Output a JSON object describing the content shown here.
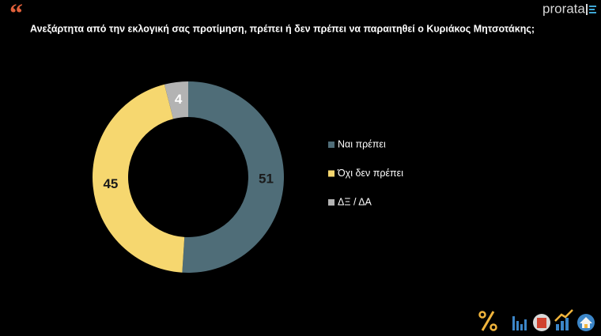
{
  "brand": "prorata",
  "chart_data": {
    "type": "donut",
    "title": "Ανεξάρτητα από την εκλογική σας προτίμηση, πρέπει ή δεν πρέπει να παραιτηθεί ο Κυριάκος Μητσοτάκης;",
    "categories": [
      "Ναι πρέπει",
      "Όχι δεν πρέπει",
      "ΔΞ / ΔΑ"
    ],
    "values": [
      51,
      45,
      4
    ],
    "colors": [
      "#4f6d78",
      "#f6d76f",
      "#b3b3b3"
    ]
  }
}
